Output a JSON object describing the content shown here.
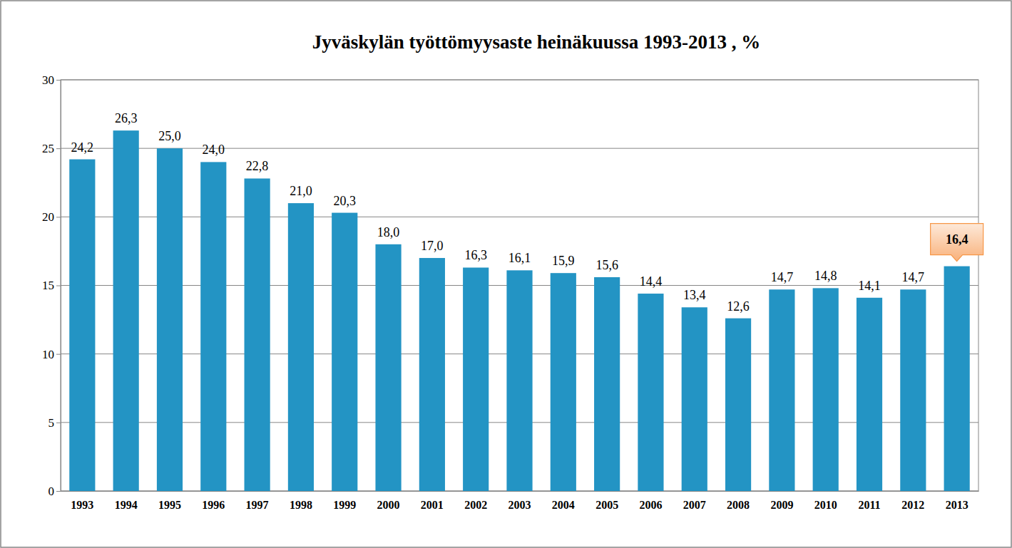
{
  "chart_data": {
    "type": "bar",
    "title": "Jyväskylän työttömyysaste heinäkuussa 1993-2013 , %",
    "categories": [
      "1993",
      "1994",
      "1995",
      "1996",
      "1997",
      "1998",
      "1999",
      "2000",
      "2001",
      "2002",
      "2003",
      "2004",
      "2005",
      "2006",
      "2007",
      "2008",
      "2009",
      "2010",
      "2011",
      "2012",
      "2013"
    ],
    "values": [
      24.2,
      26.3,
      25.0,
      24.0,
      22.8,
      21.0,
      20.3,
      18.0,
      17.0,
      16.3,
      16.1,
      15.9,
      15.6,
      14.4,
      13.4,
      12.6,
      14.7,
      14.8,
      14.1,
      14.7,
      16.4
    ],
    "value_labels": [
      "24,2",
      "26,3",
      "25,0",
      "24,0",
      "22,8",
      "21,0",
      "20,3",
      "18,0",
      "17,0",
      "16,3",
      "16,1",
      "15,9",
      "15,6",
      "14,4",
      "13,4",
      "12,6",
      "14,7",
      "14,8",
      "14,1",
      "14,7",
      "16,4"
    ],
    "color": "#2394c4",
    "ylim": [
      0,
      30
    ],
    "yticks": [
      0,
      5,
      10,
      15,
      20,
      25,
      30
    ],
    "grid": true,
    "data_labels": true
  }
}
